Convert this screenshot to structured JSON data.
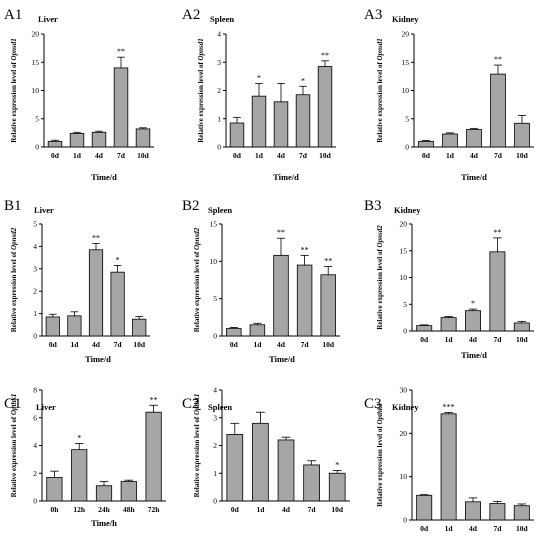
{
  "figure": {
    "ylabel_prefix": "Relative expression level of "
  },
  "chart_data": [
    {
      "id": "A1",
      "type": "bar",
      "panel_label": "A1",
      "title": "Liver",
      "gene": "Opnsd1",
      "xlabel": "Time/d",
      "categories": [
        "0d",
        "1d",
        "4d",
        "7d",
        "10d"
      ],
      "values": [
        1.0,
        2.4,
        2.6,
        14.0,
        3.2
      ],
      "errors": [
        0.2,
        0.2,
        0.2,
        1.9,
        0.2
      ],
      "significance": [
        "",
        "",
        "",
        "**",
        ""
      ],
      "ylim": [
        0,
        20
      ],
      "yticks": [
        0,
        5,
        10,
        15,
        20
      ],
      "bar_color": "#a6a6a6",
      "grid": false
    },
    {
      "id": "A2",
      "type": "bar",
      "panel_label": "A2",
      "title": "Spleen",
      "gene": "Opnsd1",
      "xlabel": "Time/d",
      "categories": [
        "0d",
        "1d",
        "4d",
        "7d",
        "10d"
      ],
      "values": [
        0.85,
        1.8,
        1.6,
        1.85,
        2.85
      ],
      "errors": [
        0.2,
        0.45,
        0.65,
        0.3,
        0.2
      ],
      "significance": [
        "",
        "*",
        "",
        "*",
        "**"
      ],
      "ylim": [
        0,
        4
      ],
      "yticks": [
        0,
        1,
        2,
        3,
        4
      ],
      "bar_color": "#a6a6a6",
      "grid": false
    },
    {
      "id": "A3",
      "type": "bar",
      "panel_label": "A3",
      "title": "Kidney",
      "gene": "Opnsd1",
      "xlabel": "Time/d",
      "categories": [
        "0d",
        "1d",
        "4d",
        "7d",
        "10d"
      ],
      "values": [
        1.0,
        2.3,
        3.1,
        12.9,
        4.2
      ],
      "errors": [
        0.15,
        0.2,
        0.2,
        1.6,
        1.4
      ],
      "significance": [
        "",
        "",
        "",
        "**",
        ""
      ],
      "ylim": [
        0,
        20
      ],
      "yticks": [
        0,
        5,
        10,
        15,
        20
      ],
      "bar_color": "#a6a6a6",
      "grid": false
    },
    {
      "id": "B1",
      "type": "bar",
      "panel_label": "B1",
      "title": "Liver",
      "gene": "Opnsd2",
      "xlabel": "Time/d",
      "categories": [
        "0d",
        "1d",
        "4d",
        "7d",
        "10d"
      ],
      "values": [
        0.85,
        0.9,
        3.85,
        2.85,
        0.75
      ],
      "errors": [
        0.12,
        0.18,
        0.28,
        0.3,
        0.12
      ],
      "significance": [
        "",
        "",
        "**",
        "*",
        ""
      ],
      "ylim": [
        0,
        5
      ],
      "yticks": [
        0,
        1,
        2,
        3,
        4,
        5
      ],
      "bar_color": "#a6a6a6",
      "grid": false
    },
    {
      "id": "B2",
      "type": "bar",
      "panel_label": "B2",
      "title": "Spleen",
      "gene": "Opnsd2",
      "xlabel": "Time/d",
      "categories": [
        "0d",
        "1d",
        "4d",
        "7d",
        "10d"
      ],
      "values": [
        1.0,
        1.5,
        10.8,
        9.5,
        8.2
      ],
      "errors": [
        0.15,
        0.2,
        2.3,
        1.3,
        1.1
      ],
      "significance": [
        "",
        "",
        "**",
        "**",
        "**"
      ],
      "ylim": [
        0,
        15
      ],
      "yticks": [
        0,
        5,
        10,
        15
      ],
      "bar_color": "#a6a6a6",
      "grid": false
    },
    {
      "id": "B3",
      "type": "bar",
      "panel_label": "B3",
      "title": "Kidney",
      "gene": "Opnsd2",
      "xlabel": "Time/d",
      "categories": [
        "0d",
        "1d",
        "4d",
        "7d",
        "10d"
      ],
      "values": [
        1.0,
        2.5,
        3.8,
        14.8,
        1.5
      ],
      "errors": [
        0.15,
        0.2,
        0.3,
        2.6,
        0.3
      ],
      "significance": [
        "",
        "",
        "*",
        "**",
        ""
      ],
      "ylim": [
        0,
        20
      ],
      "yticks": [
        0,
        5,
        10,
        15,
        20
      ],
      "bar_color": "#a6a6a6",
      "grid": false
    },
    {
      "id": "C1",
      "type": "bar",
      "panel_label": "C1",
      "title": "Liver",
      "gene": "Opthk1",
      "xlabel": "Time/h",
      "categories": [
        "0h",
        "12h",
        "24h",
        "48h",
        "72h"
      ],
      "values": [
        1.7,
        3.7,
        1.1,
        1.4,
        6.4
      ],
      "errors": [
        0.45,
        0.45,
        0.3,
        0.1,
        0.5
      ],
      "significance": [
        "",
        "*",
        "",
        "",
        "**"
      ],
      "ylim": [
        0,
        8
      ],
      "yticks": [
        0,
        2,
        4,
        6,
        8
      ],
      "bar_color": "#a6a6a6",
      "grid": false
    },
    {
      "id": "C2",
      "type": "bar",
      "panel_label": "C2",
      "title": "Spleen",
      "gene": "Opthk1",
      "xlabel": "",
      "categories": [
        "0d",
        "1d",
        "4d",
        "7d",
        "10d"
      ],
      "values": [
        2.4,
        2.8,
        2.2,
        1.3,
        1.0
      ],
      "errors": [
        0.4,
        0.4,
        0.1,
        0.15,
        0.1
      ],
      "significance": [
        "",
        "",
        "",
        "",
        "*"
      ],
      "ylim": [
        0,
        4
      ],
      "yticks": [
        0,
        1,
        2,
        3,
        4
      ],
      "bar_color": "#a6a6a6",
      "grid": false
    },
    {
      "id": "C3",
      "type": "bar",
      "panel_label": "C3",
      "title": "Kidney",
      "gene": "Opthk1",
      "xlabel": "",
      "categories": [
        "0d",
        "1d",
        "4d",
        "7d",
        "10d"
      ],
      "values": [
        5.7,
        24.5,
        4.2,
        3.8,
        3.3
      ],
      "errors": [
        0.15,
        0.3,
        0.9,
        0.5,
        0.4
      ],
      "significance": [
        "",
        "***",
        "",
        "",
        ""
      ],
      "ylim": [
        0,
        30
      ],
      "yticks": [
        0,
        10,
        20,
        30
      ],
      "bar_color": "#a6a6a6",
      "grid": false
    }
  ]
}
